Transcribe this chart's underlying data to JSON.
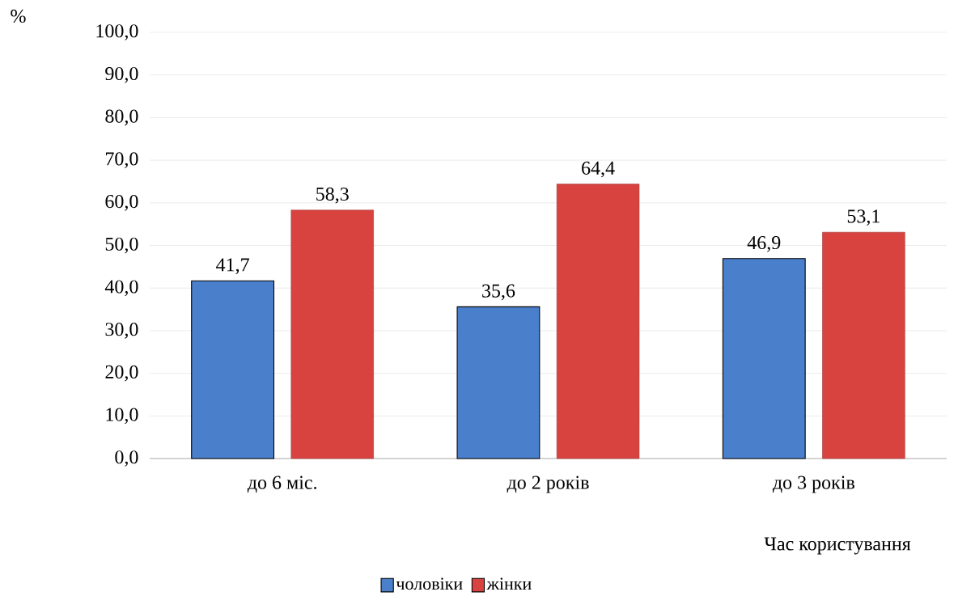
{
  "chart_data": {
    "type": "bar",
    "xlabel": "Час користування",
    "ylabel": "%",
    "categories": [
      "до 6 міс.",
      "до 2 років",
      "до 3 років"
    ],
    "series": [
      {
        "name": "чоловіки",
        "color": "#4a7fcb",
        "values": [
          41.7,
          35.6,
          46.9
        ],
        "value_labels": [
          "41,7",
          "35,6",
          "46,9"
        ]
      },
      {
        "name": "жінки",
        "color": "#d8433f",
        "values": [
          58.3,
          64.4,
          53.1
        ],
        "value_labels": [
          "58,3",
          "64,4",
          "53,1"
        ]
      }
    ],
    "ylim": [
      0,
      100
    ],
    "yticks": [
      {
        "value": 0,
        "label": "0,0"
      },
      {
        "value": 10,
        "label": "10,0"
      },
      {
        "value": 20,
        "label": "20,0"
      },
      {
        "value": 30,
        "label": "30,0"
      },
      {
        "value": 40,
        "label": "40,0"
      },
      {
        "value": 50,
        "label": "50,0"
      },
      {
        "value": 60,
        "label": "60,0"
      },
      {
        "value": 70,
        "label": "70,0"
      },
      {
        "value": 80,
        "label": "80,0"
      },
      {
        "value": 90,
        "label": "90,0"
      },
      {
        "value": 100,
        "label": "100,0"
      }
    ],
    "grid": "y",
    "legend": "bottom"
  }
}
